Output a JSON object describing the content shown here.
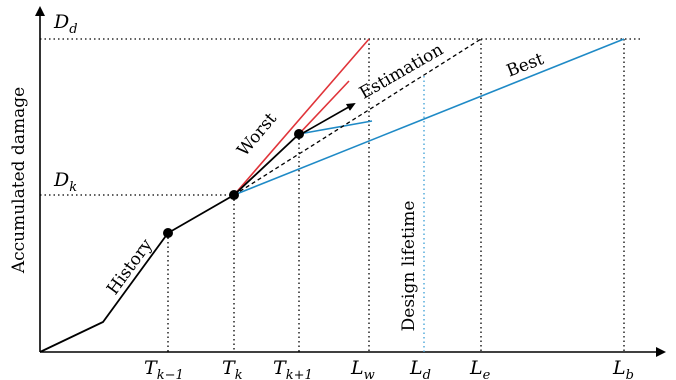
{
  "axes": {
    "y_label": "Accumulated damage"
  },
  "y_markers": {
    "dd": {
      "base": "D",
      "sub": "d"
    },
    "dk": {
      "base": "D",
      "sub": "k"
    }
  },
  "x_markers": {
    "tkm1": {
      "base": "T",
      "sub": "k−1"
    },
    "tk": {
      "base": "T",
      "sub": "k"
    },
    "tkp1": {
      "base": "T",
      "sub": "k+1"
    },
    "lw": {
      "base": "L",
      "sub": "w"
    },
    "ld": {
      "base": "L",
      "sub": "d"
    },
    "le": {
      "base": "L",
      "sub": "e"
    },
    "lb": {
      "base": "L",
      "sub": "b"
    }
  },
  "labels": {
    "history": "History",
    "worst": "Worst",
    "estimation": "Estimation",
    "best": "Best",
    "design_lifetime": "Design lifetime"
  },
  "colors": {
    "worst": "#e0343a",
    "best": "#1f8ac6",
    "design_line": "#3a9fd6",
    "ink": "#000000"
  }
}
